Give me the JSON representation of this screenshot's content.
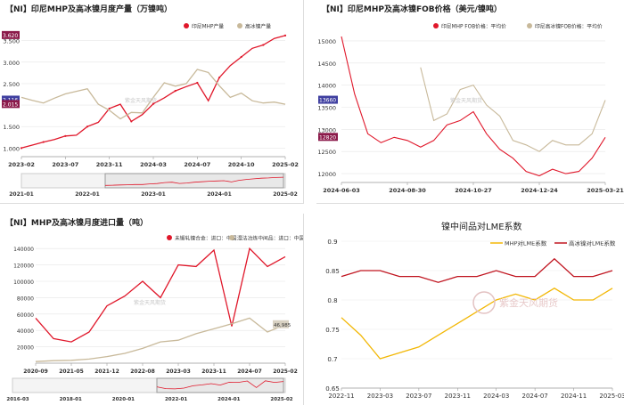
{
  "charts": [
    {
      "id": "c1",
      "title": "【NI】印尼MHP及高冰镍月度产量（万镍吨）",
      "legend": [
        {
          "name": "印尼MHP产量",
          "color": "#e0172a"
        },
        {
          "name": "高冰镍产量",
          "color": "#c8b99a"
        }
      ],
      "y_ticks": [
        "3.500",
        "3.000",
        "2.500",
        "2.000",
        "1.500",
        "1.000"
      ],
      "x_ticks": [
        "2023-02",
        "2023-07",
        "2023-11",
        "2024-03",
        "2024-07",
        "2024-10",
        "2025-02"
      ],
      "nav_ticks": [
        "2021-01",
        "2022-01",
        "2023-01",
        "2024-01",
        "2025-02"
      ],
      "flags": [
        "3.620",
        "2.015",
        "2.116"
      ],
      "watermark": "紫金天风期货"
    },
    {
      "id": "c2",
      "title": "【NI】印尼MHP及高冰镍FOB价格（美元/镍吨）",
      "legend": [
        {
          "name": "印尼MHP FOB价格：平均价",
          "color": "#e0172a"
        },
        {
          "name": "印尼高冰镍FOB价格：平均价",
          "color": "#c8b99a"
        }
      ],
      "y_ticks": [
        "15000",
        "14500",
        "14000",
        "13500",
        "13000",
        "12500",
        "12000"
      ],
      "x_ticks": [
        "2024-06-03",
        "2024-08-30",
        "2024-10-27",
        "2024-12-24",
        "2025-03-21"
      ],
      "flags": [
        "13660",
        "12820"
      ],
      "watermark": "紫金天风期货"
    },
    {
      "id": "c3",
      "title": "【NI】MHP及高冰镍月度进口量（吨）",
      "legend": [
        {
          "name": "未锻轧镍合金：进口：中国",
          "color": "#e0172a"
        },
        {
          "name": "湿法冶炼中间品：进口：中国",
          "color": "#c8b99a"
        }
      ],
      "y_ticks": [
        "140000",
        "120000",
        "100000",
        "80000",
        "60000",
        "40000",
        "20000"
      ],
      "x_ticks": [
        "2020-09",
        "2021-05",
        "2021-12",
        "2022-08",
        "2023-03",
        "2023-11",
        "2024-07",
        "2025-02"
      ],
      "nav_ticks": [
        "2016-03",
        "2018-01",
        "2020-01",
        "2022-01",
        "2024-01",
        "2025-02"
      ],
      "flags": [
        "46,985"
      ],
      "watermark": "紫金天风期货"
    },
    {
      "id": "c4",
      "title": "镍中间品对LME系数",
      "legend": [
        {
          "name": "MHP对LME系数",
          "color": "#f2b705"
        },
        {
          "name": "高冰镍对LME系数",
          "color": "#c0141f"
        }
      ],
      "y_ticks": [
        "0.9",
        "0.85",
        "0.8",
        "0.75",
        "0.7",
        "0.65"
      ],
      "x_ticks": [
        "2022-11",
        "2023-03",
        "2023-07",
        "2023-11",
        "2024-03",
        "2024-07",
        "2024-11",
        "2025-03"
      ],
      "watermark": "紫金天风期货"
    }
  ],
  "chart_data": [
    {
      "type": "line",
      "title": "【NI】印尼MHP及高冰镍月度产量（万镍吨）",
      "x": [
        "2023-02",
        "2023-03",
        "2023-04",
        "2023-05",
        "2023-06",
        "2023-07",
        "2023-08",
        "2023-09",
        "2023-10",
        "2023-11",
        "2023-12",
        "2024-01",
        "2024-02",
        "2024-03",
        "2024-04",
        "2024-05",
        "2024-06",
        "2024-07",
        "2024-08",
        "2024-09",
        "2024-10",
        "2024-11",
        "2024-12",
        "2025-01",
        "2025-02"
      ],
      "series": [
        {
          "name": "印尼MHP产量",
          "values": [
            1.0,
            1.07,
            1.14,
            1.2,
            1.28,
            1.3,
            1.5,
            1.6,
            1.92,
            2.02,
            1.62,
            1.78,
            2.03,
            2.17,
            2.33,
            2.43,
            2.52,
            2.1,
            2.64,
            2.92,
            3.12,
            3.32,
            3.4,
            3.55,
            3.62
          ]
        },
        {
          "name": "高冰镍产量",
          "values": [
            2.18,
            2.11,
            2.05,
            2.16,
            2.26,
            2.32,
            2.38,
            2.02,
            1.88,
            1.68,
            1.83,
            1.82,
            2.18,
            2.52,
            2.44,
            2.5,
            2.83,
            2.76,
            2.45,
            2.18,
            2.28,
            2.1,
            2.05,
            2.07,
            2.02
          ]
        }
      ],
      "ylim": [
        0.8,
        3.7
      ]
    },
    {
      "type": "line",
      "title": "【NI】印尼MHP及高冰镍FOB价格（美元/镍吨）",
      "x": [
        "2024-06-03",
        "2024-06-15",
        "2024-07-01",
        "2024-07-15",
        "2024-08-01",
        "2024-08-15",
        "2024-08-30",
        "2024-09-15",
        "2024-10-01",
        "2024-10-15",
        "2024-10-27",
        "2024-11-10",
        "2024-11-25",
        "2024-12-10",
        "2024-12-24",
        "2025-01-10",
        "2025-01-25",
        "2025-02-10",
        "2025-02-25",
        "2025-03-10",
        "2025-03-21"
      ],
      "series": [
        {
          "name": "印尼MHP FOB价格：平均价",
          "values": [
            15100,
            13800,
            12900,
            12700,
            12820,
            12750,
            12600,
            12750,
            13100,
            13200,
            13400,
            12900,
            12550,
            12350,
            12050,
            11950,
            12100,
            12000,
            12050,
            12350,
            12820
          ]
        },
        {
          "name": "印尼高冰镍FOB价格：平均价",
          "values": [
            null,
            null,
            null,
            null,
            null,
            null,
            14400,
            13200,
            13350,
            13900,
            14000,
            13550,
            13300,
            12750,
            12650,
            12500,
            12750,
            12650,
            12650,
            12900,
            13660
          ]
        }
      ],
      "ylim": [
        11800,
        15200
      ]
    },
    {
      "type": "line",
      "title": "【NI】MHP及高冰镍月度进口量（吨）",
      "x": [
        "2020-09",
        "2021-01",
        "2021-05",
        "2021-08",
        "2021-12",
        "2022-04",
        "2022-08",
        "2022-12",
        "2023-03",
        "2023-07",
        "2023-11",
        "2024-03",
        "2024-07",
        "2024-11",
        "2025-02"
      ],
      "series": [
        {
          "name": "未锻轧镍合金：进口：中国",
          "values": [
            55000,
            30000,
            26000,
            38000,
            70000,
            82000,
            100000,
            80000,
            120000,
            118000,
            138000,
            45000,
            140000,
            118000,
            130000
          ]
        },
        {
          "name": "湿法冶炼中间品：进口：中国",
          "values": [
            2000,
            3000,
            3500,
            5000,
            8000,
            12000,
            18000,
            26000,
            28000,
            36000,
            42000,
            48000,
            55000,
            38000,
            46985
          ]
        }
      ],
      "ylim": [
        0,
        150000
      ]
    },
    {
      "type": "line",
      "title": "镍中间品对LME系数",
      "x": [
        "2022-11",
        "2023-01",
        "2023-03",
        "2023-05",
        "2023-07",
        "2023-09",
        "2023-11",
        "2024-01",
        "2024-03",
        "2024-05",
        "2024-07",
        "2024-09",
        "2024-11",
        "2025-01",
        "2025-03"
      ],
      "series": [
        {
          "name": "MHP对LME系数",
          "values": [
            0.77,
            0.74,
            0.7,
            0.71,
            0.72,
            0.74,
            0.76,
            0.78,
            0.8,
            0.81,
            0.8,
            0.82,
            0.8,
            0.8,
            0.82
          ]
        },
        {
          "name": "高冰镍对LME系数",
          "values": [
            0.84,
            0.85,
            0.85,
            0.84,
            0.84,
            0.83,
            0.84,
            0.84,
            0.85,
            0.84,
            0.84,
            0.87,
            0.84,
            0.84,
            0.85
          ]
        }
      ],
      "ylim": [
        0.65,
        0.9
      ]
    }
  ]
}
